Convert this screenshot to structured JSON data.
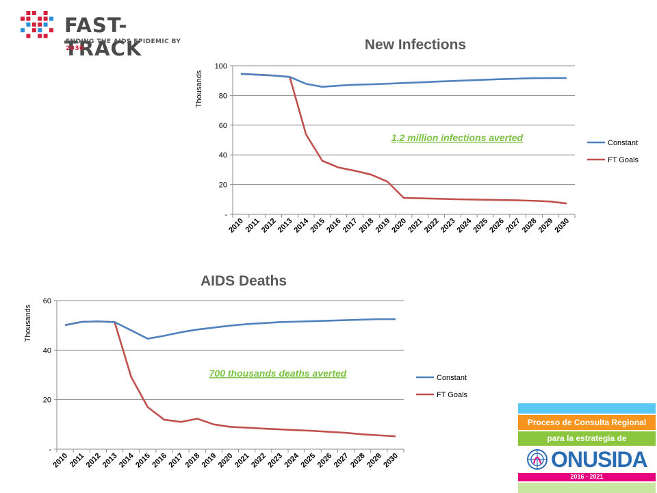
{
  "logo": {
    "wordmark": "FAST-TRACK",
    "tagline_prefix": "ENDING THE AIDS EPIDEMIC BY ",
    "tagline_year": "2030",
    "dot_colors": [
      "#d6203b",
      "#2a8fd6"
    ]
  },
  "onusida": {
    "line1": "Proceso de Consulta Regional",
    "line2": "para la estrategia de",
    "brand": "ONUSIDA",
    "years": "2016 - 2021",
    "colors": {
      "top": "#5ac8f0",
      "orange": "#f7941d",
      "green": "#8cc63f",
      "blue": "#2a6db5",
      "magenta": "#e6007e",
      "light_green": "#c8e6a0"
    }
  },
  "chart_data": [
    {
      "type": "line",
      "title": "New Infections",
      "ylabel": "Thousands",
      "xlabel": "",
      "x": [
        "2010",
        "2011",
        "2012",
        "2013",
        "2014",
        "2015",
        "2016",
        "2017",
        "2018",
        "2019",
        "2020",
        "2021",
        "2022",
        "2023",
        "2024",
        "2025",
        "2026",
        "2027",
        "2028",
        "2029",
        "2030"
      ],
      "ylim": [
        0,
        100
      ],
      "yticks": [
        0,
        20,
        40,
        60,
        80,
        100
      ],
      "ytick_labels": [
        "-",
        "20",
        "40",
        "60",
        "80",
        "100"
      ],
      "grid": true,
      "legend_position": "right",
      "series": [
        {
          "name": "Constant",
          "color": "#4f81bd",
          "values": [
            94.5,
            94,
            93.4,
            92.5,
            87.8,
            85.8,
            86.6,
            87.2,
            87.5,
            87.9,
            88.4,
            88.8,
            89.3,
            89.7,
            90.2,
            90.6,
            91,
            91.3,
            91.6,
            91.7,
            91.7
          ]
        },
        {
          "name": "FT Goals",
          "color": "#c0504d",
          "values": [
            94.5,
            94,
            93.4,
            92.5,
            53.8,
            36,
            31.5,
            29.3,
            26.7,
            22,
            11,
            10.8,
            10.5,
            10.2,
            10,
            9.8,
            9.6,
            9.4,
            9.1,
            8.6,
            7.3
          ]
        }
      ],
      "annotations": [
        "1,2 million infections averted"
      ]
    },
    {
      "type": "line",
      "title": "AIDS Deaths",
      "ylabel": "Thousands",
      "xlabel": "",
      "x": [
        "2010",
        "2011",
        "2012",
        "2013",
        "2014",
        "2015",
        "2016",
        "2017",
        "2018",
        "2019",
        "2020",
        "2021",
        "2022",
        "2023",
        "2024",
        "2025",
        "2026",
        "2027",
        "2028",
        "2029",
        "2030"
      ],
      "ylim": [
        0,
        60
      ],
      "yticks": [
        0,
        20,
        40,
        60
      ],
      "ytick_labels": [
        "-",
        "20",
        "40",
        "60"
      ],
      "grid": true,
      "legend_position": "right",
      "series": [
        {
          "name": "Constant",
          "color": "#4f81bd",
          "values": [
            50.1,
            51.4,
            51.6,
            51.3,
            48,
            44.6,
            45.8,
            47.2,
            48.3,
            49.1,
            49.9,
            50.5,
            50.9,
            51.3,
            51.5,
            51.7,
            51.9,
            52.1,
            52.3,
            52.5,
            52.5
          ]
        },
        {
          "name": "FT Goals",
          "color": "#c0504d",
          "values": [
            50.1,
            51.4,
            51.6,
            51.3,
            29.2,
            17,
            11.9,
            11,
            12.3,
            10,
            9,
            8.7,
            8.3,
            8,
            7.7,
            7.4,
            7,
            6.6,
            6,
            5.6,
            5.2
          ]
        }
      ],
      "annotations": [
        "700 thousands deaths averted"
      ]
    }
  ]
}
